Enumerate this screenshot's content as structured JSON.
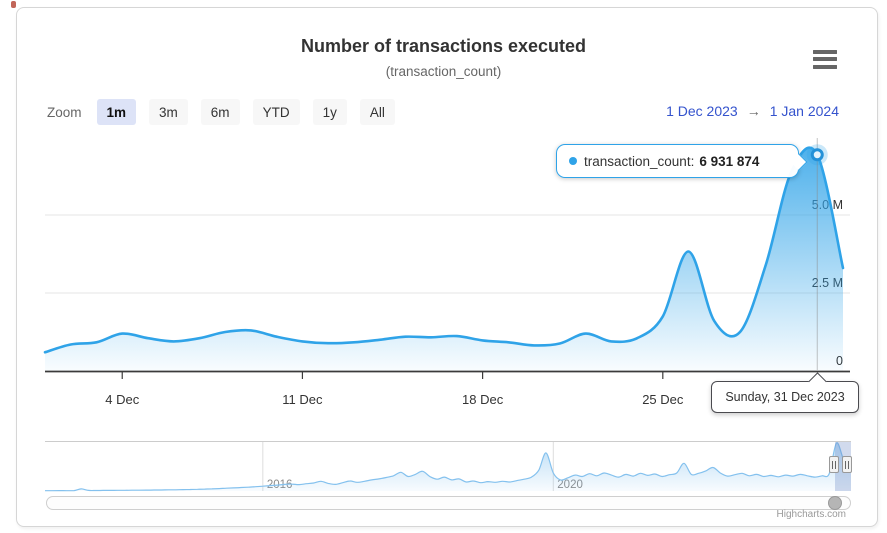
{
  "page": {
    "credit": "Highcharts.com"
  },
  "header": {
    "title": "Number of transactions executed",
    "subtitle": "(transaction_count)"
  },
  "range_selector": {
    "zoom_label": "Zoom",
    "buttons": [
      {
        "label": "1m",
        "selected": true
      },
      {
        "label": "3m",
        "selected": false
      },
      {
        "label": "6m",
        "selected": false
      },
      {
        "label": "YTD",
        "selected": false
      },
      {
        "label": "1y",
        "selected": false
      },
      {
        "label": "All",
        "selected": false
      }
    ],
    "from": "1 Dec 2023",
    "arrow": "→",
    "to": "1 Jan 2024"
  },
  "tooltip": {
    "label": "transaction_count:",
    "value": "6 931 874"
  },
  "date_tooltip": {
    "text": "Sunday, 31 Dec 2023"
  },
  "chart_data": {
    "type": "area",
    "title": "Number of transactions executed",
    "subtitle": "(transaction_count)",
    "series_name": "transaction_count",
    "x": [
      "1 Dec",
      "2 Dec",
      "3 Dec",
      "4 Dec",
      "5 Dec",
      "6 Dec",
      "7 Dec",
      "8 Dec",
      "9 Dec",
      "10 Dec",
      "11 Dec",
      "12 Dec",
      "13 Dec",
      "14 Dec",
      "15 Dec",
      "16 Dec",
      "17 Dec",
      "18 Dec",
      "19 Dec",
      "20 Dec",
      "21 Dec",
      "22 Dec",
      "23 Dec",
      "24 Dec",
      "25 Dec",
      "26 Dec",
      "27 Dec",
      "28 Dec",
      "29 Dec",
      "30 Dec",
      "31 Dec",
      "1 Jan"
    ],
    "values_millions": [
      0.6,
      0.85,
      0.92,
      1.2,
      1.05,
      0.95,
      1.05,
      1.25,
      1.3,
      1.1,
      0.95,
      0.89,
      0.92,
      1.0,
      1.1,
      1.08,
      1.12,
      0.98,
      0.92,
      0.82,
      0.88,
      1.2,
      0.95,
      1.05,
      1.75,
      3.83,
      1.6,
      1.25,
      3.4,
      6.4,
      6.931874,
      3.3
    ],
    "ylim": [
      0,
      7.5
    ],
    "grid": true,
    "legend": "none",
    "y_ticks": [
      {
        "value": 0,
        "label": "0"
      },
      {
        "value": 2.5,
        "label": "2.5 M"
      },
      {
        "value": 5,
        "label": "5.0 M"
      }
    ],
    "x_ticks": [
      {
        "index": 3,
        "label": "4 Dec"
      },
      {
        "index": 10,
        "label": "11 Dec"
      },
      {
        "index": 17,
        "label": "18 Dec"
      },
      {
        "index": 24,
        "label": "25 Dec"
      }
    ],
    "hover_point": {
      "index": 30,
      "x_label": "31 Dec",
      "date_label": "Sunday, 31 Dec 2023",
      "value": 6931874,
      "value_display": "6 931 874"
    },
    "navigator": {
      "range_years": [
        2013.0,
        2024.1
      ],
      "tick_labels": [
        {
          "label": "2016",
          "index": 30
        },
        {
          "label": "2020",
          "index": 70
        }
      ],
      "values_millions": [
        0.05,
        0.05,
        0.06,
        0.05,
        0.06,
        0.3,
        0.08,
        0.07,
        0.08,
        0.09,
        0.1,
        0.1,
        0.11,
        0.12,
        0.13,
        0.14,
        0.15,
        0.17,
        0.18,
        0.2,
        0.22,
        0.25,
        0.28,
        0.31,
        0.35,
        0.4,
        0.45,
        0.5,
        0.55,
        0.62,
        0.7,
        0.78,
        0.85,
        0.95,
        1.0,
        0.92,
        1.05,
        1.15,
        1.4,
        1.1,
        0.95,
        1.2,
        1.45,
        1.25,
        1.4,
        1.6,
        1.75,
        1.95,
        2.2,
        2.7,
        2.1,
        2.4,
        2.85,
        2.1,
        1.7,
        2.0,
        1.6,
        1.75,
        1.3,
        1.45,
        1.2,
        1.35,
        1.25,
        1.4,
        1.3,
        1.5,
        1.7,
        2.0,
        3.0,
        5.5,
        2.6,
        1.6,
        1.9,
        2.3,
        2.1,
        2.5,
        2.2,
        2.6,
        2.3,
        2.0,
        2.4,
        2.15,
        2.55,
        2.25,
        2.45,
        2.1,
        2.35,
        2.6,
        4.0,
        2.4,
        2.55,
        2.9,
        3.4,
        2.6,
        2.15,
        2.35,
        2.55,
        2.2,
        2.4,
        2.1,
        2.25,
        2.05,
        2.3,
        2.15,
        2.4,
        2.2,
        2.0,
        2.2,
        2.5,
        6.93,
        4.5,
        3.3
      ]
    },
    "colors": {
      "series_line": "#2fa3e8",
      "navigator_line": "#84c1ee",
      "button_selected_bg": "#dde3f7",
      "range_text": "#3453cd",
      "mask_fill": "rgba(102,133,194,0.3)",
      "grid": "#e6e6e6",
      "axis_line": "#3b3b3b",
      "label_text": "#333333",
      "nav_label_text": "#8a8a8a"
    }
  }
}
